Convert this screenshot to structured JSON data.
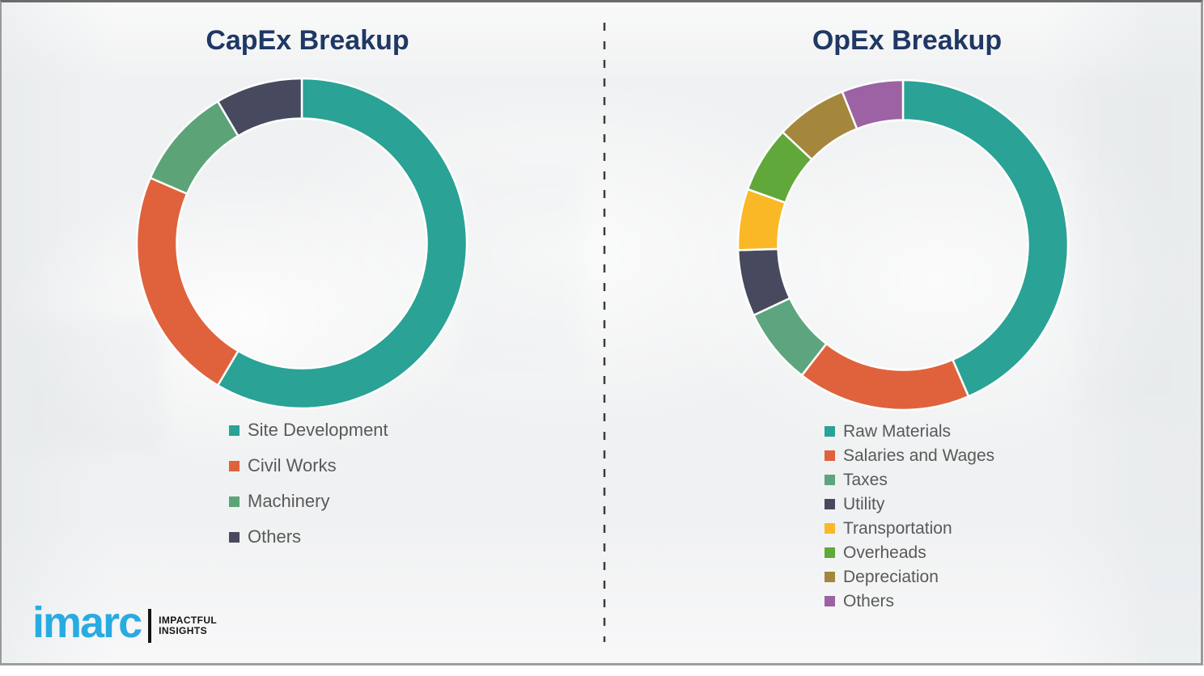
{
  "page": {
    "background_color": "#f0f1f2",
    "frame_border_color": "#9a9a9a",
    "title_color": "#1f3864",
    "legend_text_color": "#595959"
  },
  "divider": {
    "orientation": "vertical",
    "style": "dashed",
    "color": "#3c3c3c"
  },
  "chart_data": [
    {
      "type": "pie",
      "variant": "donut",
      "title": "CapEx Breakup",
      "categories": [
        "Site Development",
        "Civil Works",
        "Machinery",
        "Others"
      ],
      "values": [
        58.5,
        23,
        10,
        8.5
      ],
      "unit": "percent",
      "colors": [
        "#2aa296",
        "#e0623c",
        "#5ca478",
        "#474a5f"
      ],
      "start_angle_deg": 0,
      "direction": "clockwise",
      "legend_position": "bottom-left",
      "data_labels": false
    },
    {
      "type": "pie",
      "variant": "donut",
      "title": "OpEx Breakup",
      "categories": [
        "Raw Materials",
        "Salaries and Wages",
        "Taxes",
        "Utility",
        "Transportation",
        "Overheads",
        "Depreciation",
        "Others"
      ],
      "values": [
        43.5,
        17,
        7.5,
        6.5,
        6,
        6.5,
        7,
        6
      ],
      "unit": "percent",
      "colors": [
        "#2aa296",
        "#e0623c",
        "#5da57e",
        "#474a5f",
        "#fab827",
        "#60a83a",
        "#a4873d",
        "#9c62a3"
      ],
      "start_angle_deg": 0,
      "direction": "clockwise",
      "legend_position": "bottom-left",
      "data_labels": false
    }
  ],
  "logo": {
    "brand": "imarc",
    "brand_color": "#29abe2",
    "tagline_line1": "IMPACTFUL",
    "tagline_line2": "INSIGHTS"
  }
}
